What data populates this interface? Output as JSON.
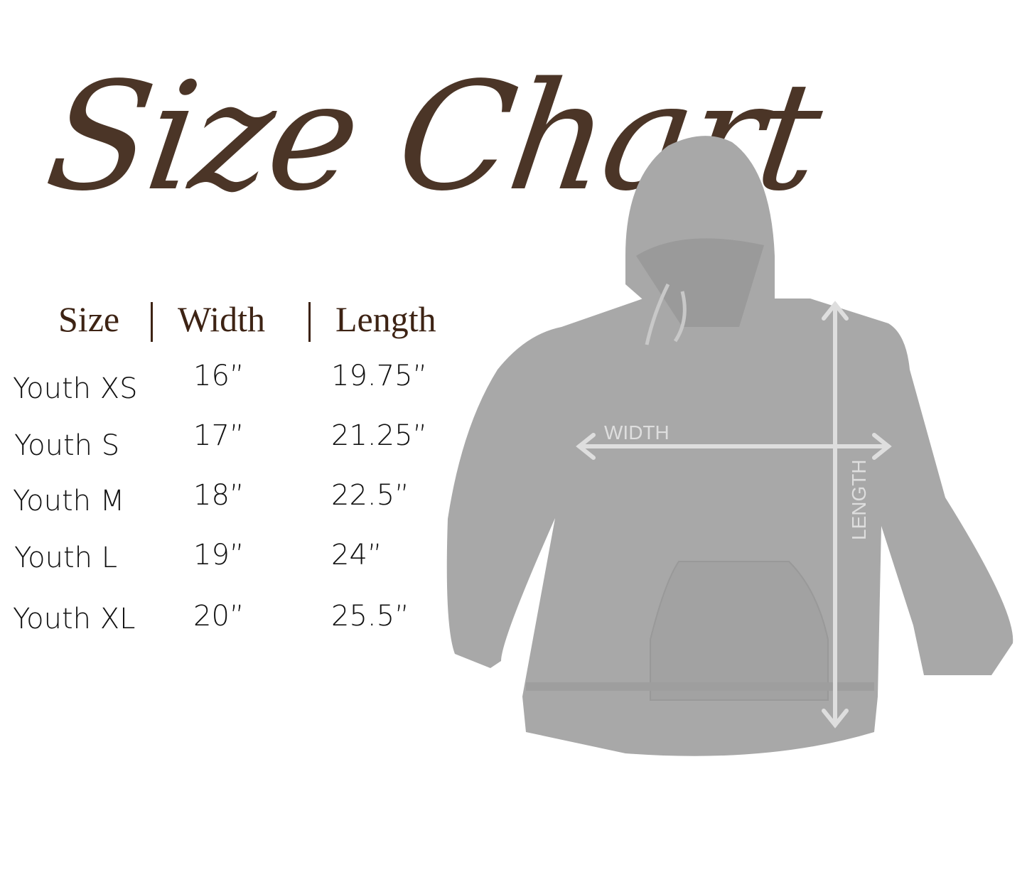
{
  "title": "Size Chart",
  "table": {
    "headers": [
      "Size",
      "Width",
      "Length"
    ],
    "rows": [
      {
        "size": "Youth XS",
        "width": "16”",
        "length": "19.75”"
      },
      {
        "size": "Youth S",
        "width": "17”",
        "length": "21.25”"
      },
      {
        "size": "Youth M",
        "width": "18”",
        "length": "22.5”"
      },
      {
        "size": "Youth L",
        "width": "19”",
        "length": "24”"
      },
      {
        "size": "Youth XL",
        "width": "20”",
        "length": "25.5”"
      }
    ]
  },
  "diagram": {
    "width_label": "WIDTH",
    "length_label": "LENGTH"
  },
  "colors": {
    "title": "#4b3527",
    "header": "#3d2314",
    "hoodie": "#a8a8a8",
    "arrows": "#dedede"
  }
}
